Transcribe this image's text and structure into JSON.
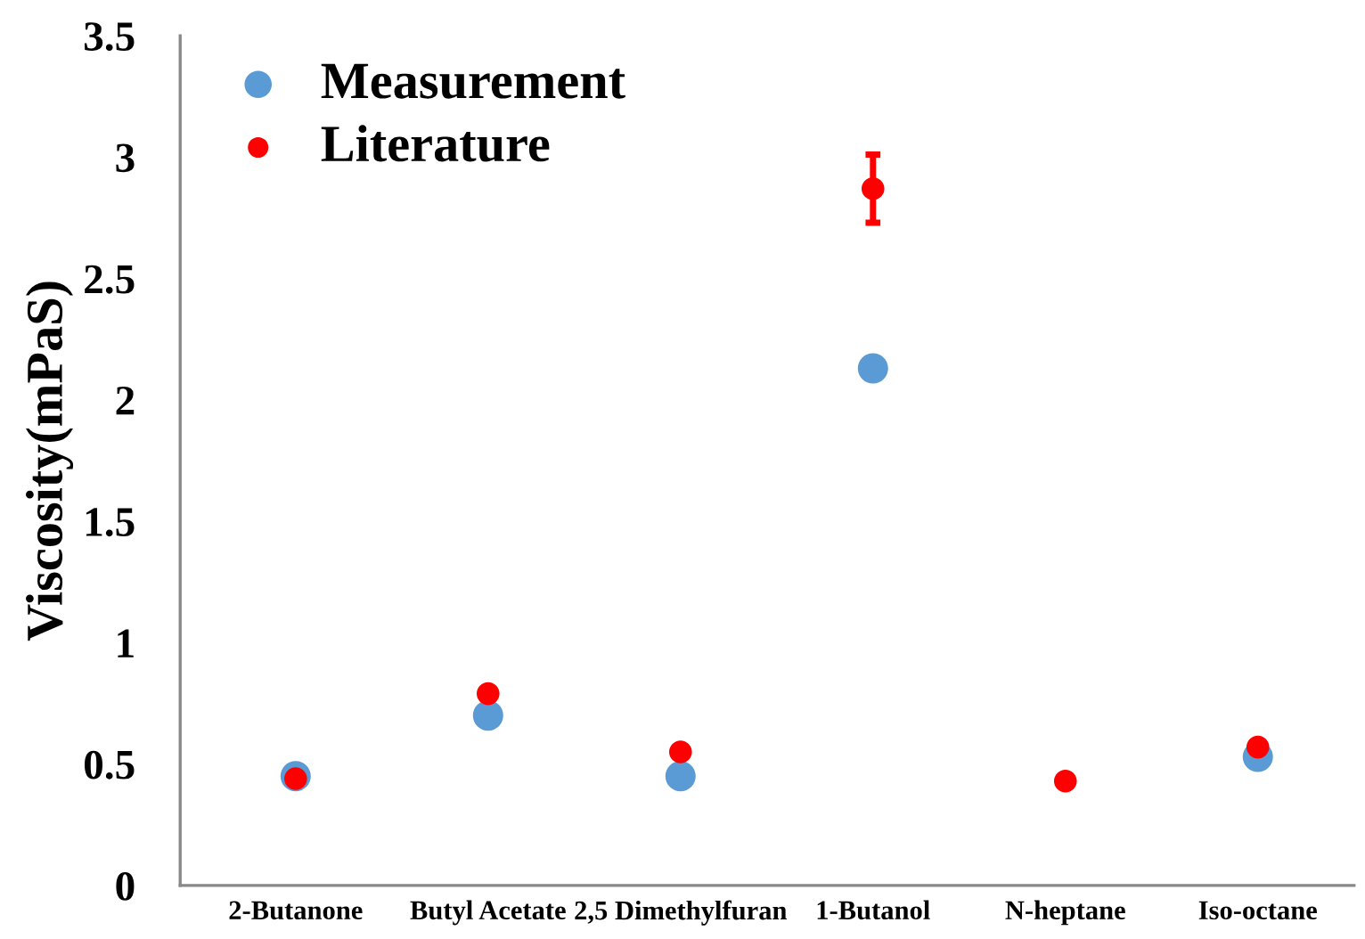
{
  "chart_data": {
    "type": "scatter",
    "ylabel": "Viscosity(mPaS)",
    "categories": [
      "2-Butanone",
      "Butyl Acetate",
      "2,5 Dimethylfuran",
      "1-Butanol",
      "N-heptane",
      "Iso-octane"
    ],
    "series": [
      {
        "name": "Measurement",
        "color": "#5b9bd5",
        "values": [
          0.45,
          0.7,
          0.45,
          2.13,
          null,
          0.53
        ]
      },
      {
        "name": "Literature",
        "color": "#ff0000",
        "values": [
          0.44,
          0.79,
          0.55,
          2.87,
          0.43,
          0.57
        ],
        "errors": [
          null,
          null,
          null,
          0.14,
          null,
          null
        ]
      }
    ],
    "ylim": [
      0,
      3.5
    ],
    "yticks": [
      0,
      0.5,
      1,
      1.5,
      2,
      2.5,
      3,
      3.5
    ],
    "grid": false,
    "legend": "top left",
    "marker": "circle"
  }
}
